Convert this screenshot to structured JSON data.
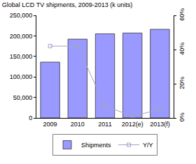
{
  "chart_data": {
    "type": "bar",
    "title": "Global LCD TV shipments, 2009-2013 (k units)",
    "categories": [
      "2009",
      "2010",
      "2011",
      "2012(e)",
      "2013(f)"
    ],
    "series": [
      {
        "name": "Shipments",
        "type": "bar",
        "color": "#9999ff",
        "values": [
          136000,
          192000,
          205000,
          207000,
          216000
        ]
      },
      {
        "name": "Y/Y",
        "type": "line",
        "axis": "y2",
        "color": "#a3a3c8",
        "marker": "square-open",
        "values": [
          42,
          42,
          7,
          1,
          5
        ]
      }
    ],
    "ylim": [
      0,
      250000
    ],
    "yticks": [
      0,
      {
        "value": 50000,
        "label": "50,000"
      },
      {
        "value": 100000,
        "label": "100,000"
      },
      {
        "value": 150000,
        "label": "150,000"
      },
      {
        "value": 200000,
        "label": "200,000"
      },
      {
        "value": 250000,
        "label": "250,000"
      }
    ],
    "y2lim": [
      0,
      60
    ],
    "y2ticks": [
      {
        "value": 0,
        "label": "0%"
      },
      {
        "value": 20,
        "label": "20%"
      },
      {
        "value": 40,
        "label": "40%"
      },
      {
        "value": 60,
        "label": "60%"
      }
    ],
    "grid": false,
    "legend": "bottom"
  }
}
